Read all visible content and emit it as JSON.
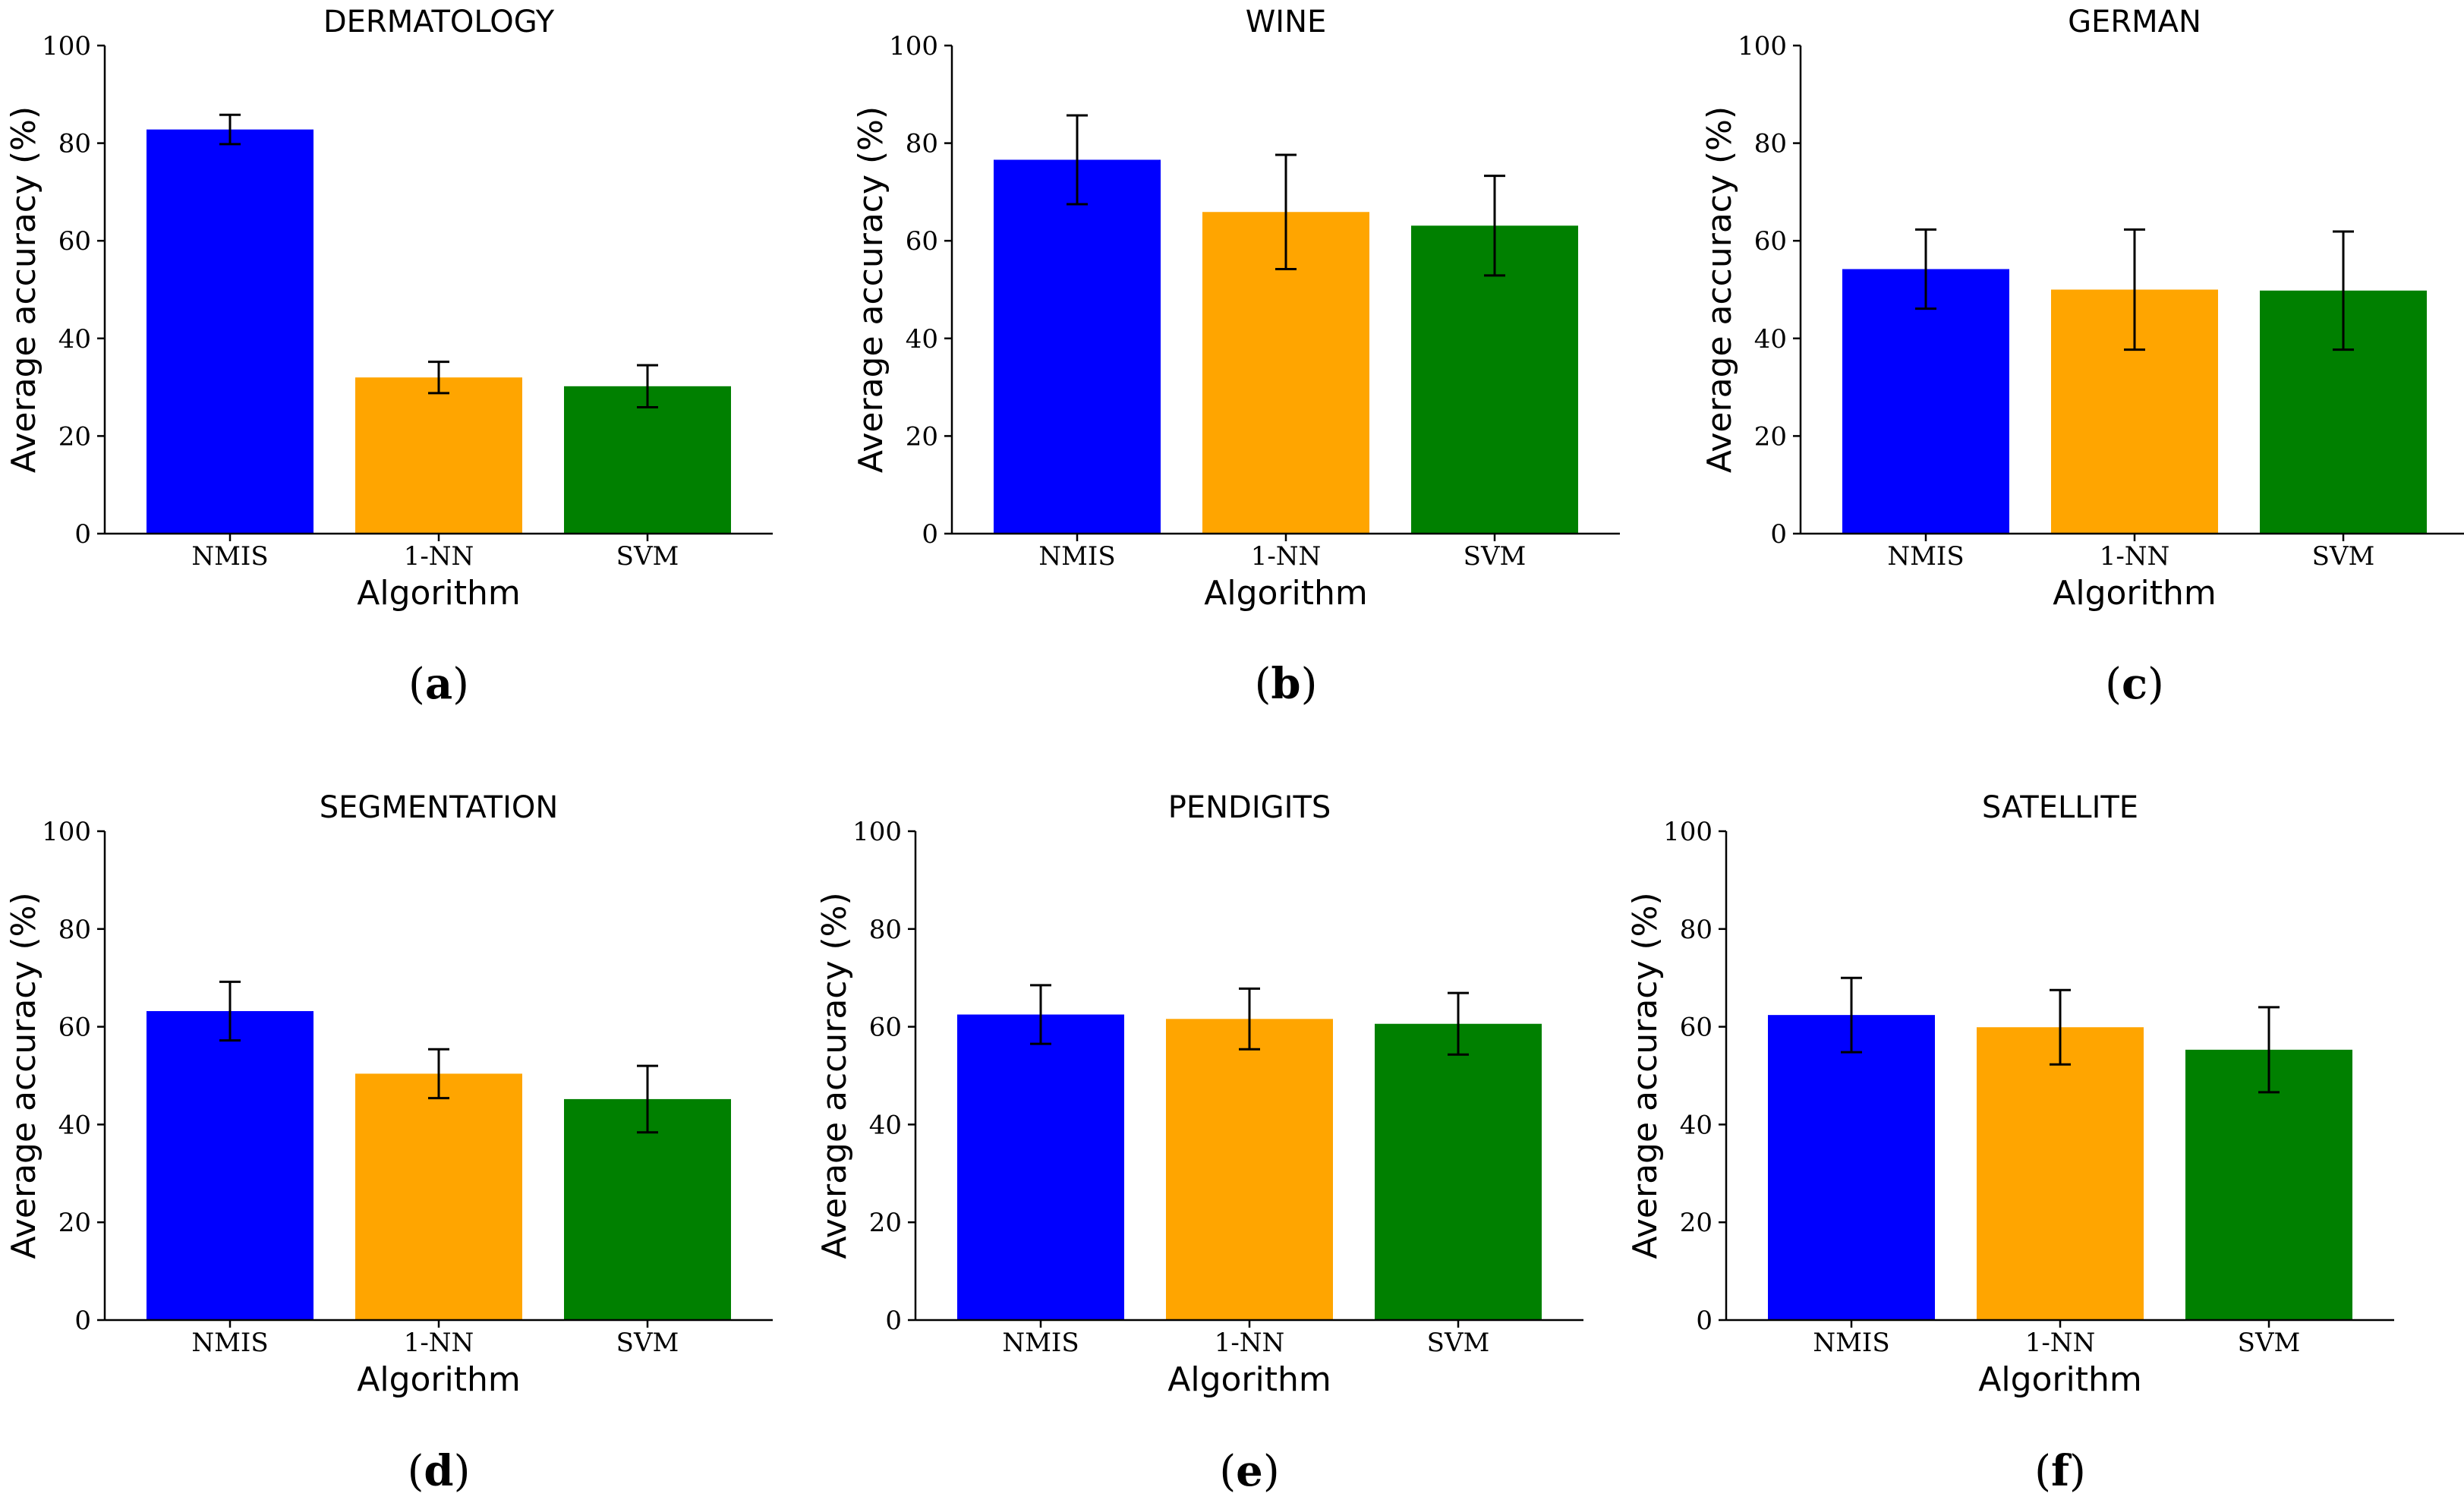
{
  "chart_data": [
    {
      "panel": "a",
      "type": "bar",
      "title": "DERMATOLOGY",
      "xlabel": "Algorithm",
      "ylabel": "Average accuracy (%)",
      "ylim": [
        0,
        100
      ],
      "yticks": [
        0,
        20,
        40,
        60,
        80,
        100
      ],
      "categories": [
        "NMIS",
        "1-NN",
        "SVM"
      ],
      "values": [
        82.8,
        32.0,
        30.2
      ],
      "errors": [
        3.0,
        3.2,
        4.3
      ],
      "colors": [
        "#0000ff",
        "#ffa500",
        "#008000"
      ]
    },
    {
      "panel": "b",
      "type": "bar",
      "title": "WINE",
      "xlabel": "Algorithm",
      "ylabel": "Average accuracy (%)",
      "ylim": [
        0,
        100
      ],
      "yticks": [
        0,
        20,
        40,
        60,
        80,
        100
      ],
      "categories": [
        "NMIS",
        "1-NN",
        "SVM"
      ],
      "values": [
        76.6,
        65.9,
        63.1
      ],
      "errors": [
        9.1,
        11.7,
        10.2
      ],
      "colors": [
        "#0000ff",
        "#ffa500",
        "#008000"
      ]
    },
    {
      "panel": "c",
      "type": "bar",
      "title": "GERMAN",
      "xlabel": "Algorithm",
      "ylabel": "Average accuracy (%)",
      "ylim": [
        0,
        100
      ],
      "yticks": [
        0,
        20,
        40,
        60,
        80,
        100
      ],
      "categories": [
        "NMIS",
        "1-NN",
        "SVM"
      ],
      "values": [
        54.2,
        50.0,
        49.8
      ],
      "errors": [
        8.1,
        12.3,
        12.1
      ],
      "colors": [
        "#0000ff",
        "#ffa500",
        "#008000"
      ]
    },
    {
      "panel": "d",
      "type": "bar",
      "title": "SEGMENTATION",
      "xlabel": "Algorithm",
      "ylabel": "Average accuracy (%)",
      "ylim": [
        0,
        100
      ],
      "yticks": [
        0,
        20,
        40,
        60,
        80,
        100
      ],
      "categories": [
        "NMIS",
        "1-NN",
        "SVM"
      ],
      "values": [
        63.2,
        50.4,
        45.2
      ],
      "errors": [
        6.0,
        5.0,
        6.8
      ],
      "colors": [
        "#0000ff",
        "#ffa500",
        "#008000"
      ]
    },
    {
      "panel": "e",
      "type": "bar",
      "title": "PENDIGITS",
      "xlabel": "Algorithm",
      "ylabel": "Average accuracy (%)",
      "ylim": [
        0,
        100
      ],
      "yticks": [
        0,
        20,
        40,
        60,
        80,
        100
      ],
      "categories": [
        "NMIS",
        "1-NN",
        "SVM"
      ],
      "values": [
        62.5,
        61.6,
        60.6
      ],
      "errors": [
        6.0,
        6.2,
        6.3
      ],
      "colors": [
        "#0000ff",
        "#ffa500",
        "#008000"
      ]
    },
    {
      "panel": "f",
      "type": "bar",
      "title": "SATELLITE",
      "xlabel": "Algorithm",
      "ylabel": "Average accuracy (%)",
      "ylim": [
        0,
        100
      ],
      "yticks": [
        0,
        20,
        40,
        60,
        80,
        100
      ],
      "categories": [
        "NMIS",
        "1-NN",
        "SVM"
      ],
      "values": [
        62.4,
        59.9,
        55.3
      ],
      "errors": [
        7.6,
        7.6,
        8.7
      ],
      "colors": [
        "#0000ff",
        "#ffa500",
        "#008000"
      ]
    }
  ]
}
